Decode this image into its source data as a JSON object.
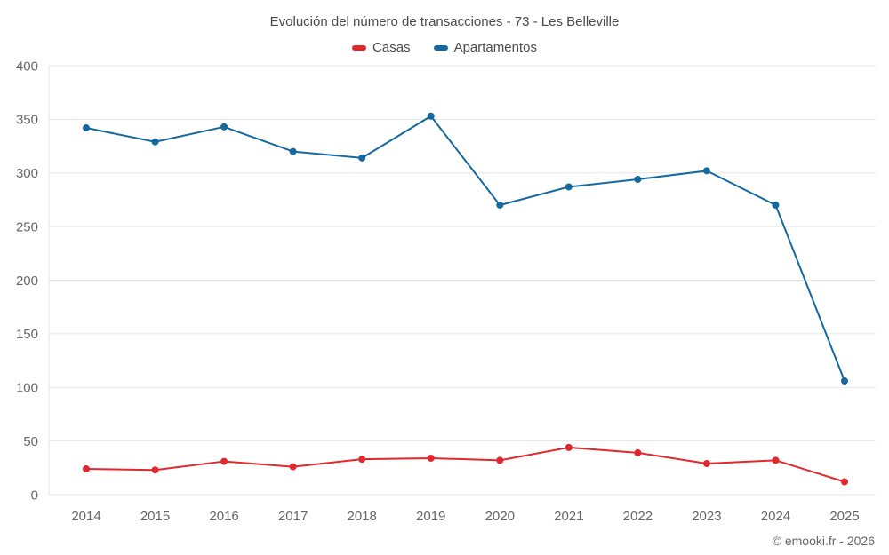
{
  "title": "Evolución del número de transacciones - 73 - Les Belleville",
  "footer": "© emooki.fr - 2026",
  "colors": {
    "grid": "#e6e6e6",
    "axis_text": "#666666",
    "title_text": "#4a4a4a",
    "casas": "#e0282e",
    "apartamentos": "#16699e"
  },
  "chart_data": {
    "type": "line",
    "title": "Evolución del número de transacciones - 73 - Les Belleville",
    "x": [
      "2014",
      "2015",
      "2016",
      "2017",
      "2018",
      "2019",
      "2020",
      "2021",
      "2022",
      "2023",
      "2024",
      "2025"
    ],
    "series": [
      {
        "name": "Casas",
        "color": "#e0282e",
        "values": [
          24,
          23,
          31,
          26,
          33,
          34,
          32,
          44,
          39,
          29,
          32,
          12
        ]
      },
      {
        "name": "Apartamentos",
        "color": "#16699e",
        "values": [
          342,
          329,
          343,
          320,
          314,
          353,
          270,
          287,
          294,
          302,
          270,
          106
        ]
      }
    ],
    "ylim": [
      0,
      400
    ],
    "ytick_step": 50,
    "grid": true,
    "legend_position": "top"
  }
}
